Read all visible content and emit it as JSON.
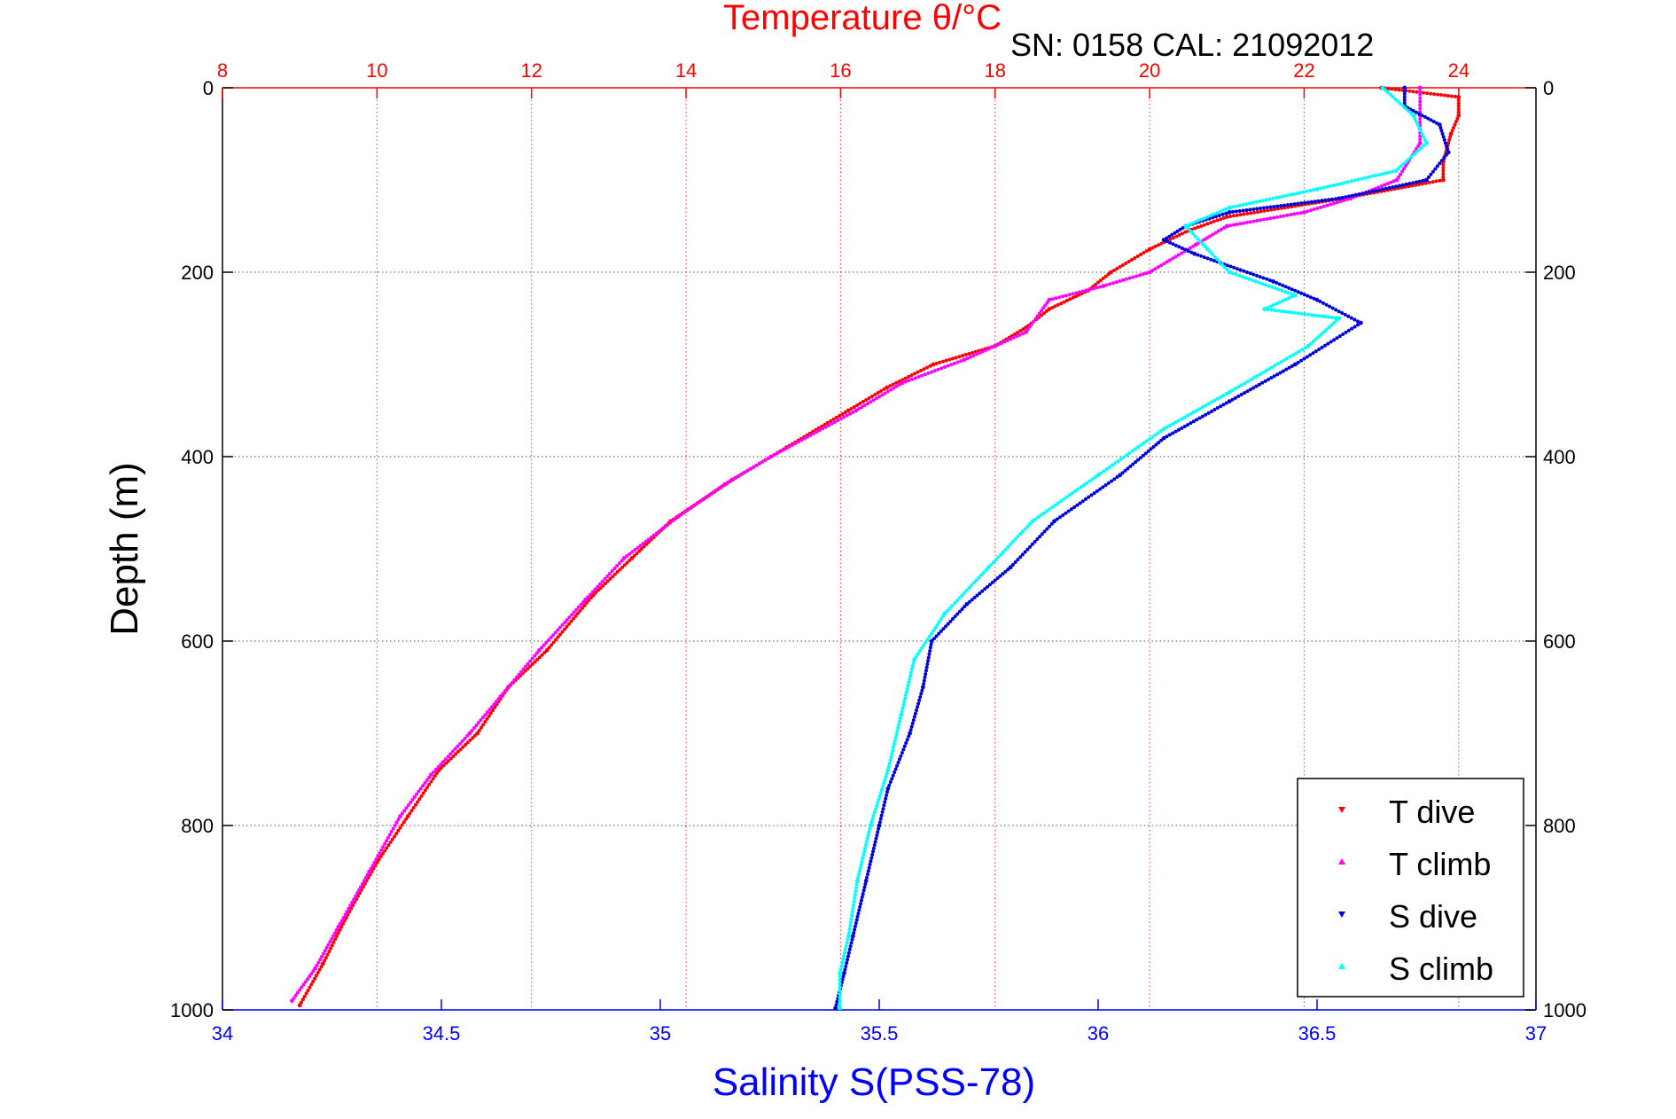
{
  "header": {
    "temperature_title": "Temperature θ/°C",
    "serial_label": "SN: 0158  CAL: 21092012"
  },
  "chart_data": {
    "type": "scatter",
    "ylabel": "Depth (m)",
    "xlabel_bottom": "Salinity S(PSS-78)",
    "xlabel_top": "Temperature θ/°C",
    "y_range": [
      0,
      1000
    ],
    "y_reversed": true,
    "y_ticks": [
      "0",
      "200",
      "400",
      "600",
      "800",
      "1000"
    ],
    "x_bottom_range": [
      34,
      37
    ],
    "x_bottom_ticks": [
      "34",
      "34.5",
      "35",
      "35.5",
      "36",
      "36.5",
      "37"
    ],
    "x_top_range": [
      8,
      25
    ],
    "x_top_ticks": [
      "8",
      "10",
      "12",
      "14",
      "16",
      "18",
      "20",
      "22",
      "24"
    ],
    "grid": true,
    "legend_position": "bottom-right",
    "colors": {
      "temperature_axis": "#ff0000",
      "salinity_axis": "#0000ff",
      "t_dive": "#ff0000",
      "t_climb": "#ff00ff",
      "s_dive": "#0000dd",
      "s_climb": "#00ffff"
    },
    "series": [
      {
        "name": "T dive",
        "axis": "top",
        "color": "#ff0000",
        "points": [
          [
            23.0,
            0
          ],
          [
            24.0,
            10
          ],
          [
            24.0,
            30
          ],
          [
            23.9,
            50
          ],
          [
            23.8,
            80
          ],
          [
            23.8,
            100
          ],
          [
            22.5,
            120
          ],
          [
            21.0,
            140
          ],
          [
            20.5,
            155
          ],
          [
            20.0,
            175
          ],
          [
            19.5,
            200
          ],
          [
            19.2,
            220
          ],
          [
            18.7,
            240
          ],
          [
            18.4,
            260
          ],
          [
            18.0,
            280
          ],
          [
            17.2,
            300
          ],
          [
            16.6,
            325
          ],
          [
            16.1,
            350
          ],
          [
            15.3,
            390
          ],
          [
            14.6,
            425
          ],
          [
            13.8,
            470
          ],
          [
            13.3,
            510
          ],
          [
            12.8,
            550
          ],
          [
            12.2,
            610
          ],
          [
            11.7,
            650
          ],
          [
            11.3,
            700
          ],
          [
            10.8,
            740
          ],
          [
            10.4,
            790
          ],
          [
            10.0,
            840
          ],
          [
            9.6,
            900
          ],
          [
            9.3,
            950
          ],
          [
            9.0,
            995
          ]
        ]
      },
      {
        "name": "T climb",
        "axis": "top",
        "color": "#ff00ff",
        "points": [
          [
            23.5,
            0
          ],
          [
            23.5,
            30
          ],
          [
            23.5,
            60
          ],
          [
            23.2,
            100
          ],
          [
            22.6,
            120
          ],
          [
            22.0,
            135
          ],
          [
            21.0,
            150
          ],
          [
            20.6,
            170
          ],
          [
            20.0,
            200
          ],
          [
            19.4,
            215
          ],
          [
            18.7,
            230
          ],
          [
            18.4,
            265
          ],
          [
            17.6,
            295
          ],
          [
            16.8,
            320
          ],
          [
            16.2,
            350
          ],
          [
            15.1,
            400
          ],
          [
            14.5,
            430
          ],
          [
            13.9,
            465
          ],
          [
            13.2,
            510
          ],
          [
            12.7,
            555
          ],
          [
            12.1,
            610
          ],
          [
            11.6,
            660
          ],
          [
            11.2,
            700
          ],
          [
            10.7,
            745
          ],
          [
            10.3,
            790
          ],
          [
            9.9,
            850
          ],
          [
            9.5,
            910
          ],
          [
            9.2,
            955
          ],
          [
            8.9,
            990
          ]
        ]
      },
      {
        "name": "S dive",
        "axis": "bottom",
        "color": "#0000dd",
        "points": [
          [
            36.7,
            0
          ],
          [
            36.7,
            20
          ],
          [
            36.78,
            40
          ],
          [
            36.8,
            70
          ],
          [
            36.75,
            100
          ],
          [
            36.55,
            120
          ],
          [
            36.3,
            135
          ],
          [
            36.2,
            150
          ],
          [
            36.15,
            165
          ],
          [
            36.22,
            180
          ],
          [
            36.4,
            210
          ],
          [
            36.5,
            230
          ],
          [
            36.6,
            255
          ],
          [
            36.45,
            300
          ],
          [
            36.3,
            340
          ],
          [
            36.15,
            380
          ],
          [
            36.05,
            420
          ],
          [
            35.9,
            470
          ],
          [
            35.8,
            520
          ],
          [
            35.7,
            560
          ],
          [
            35.62,
            600
          ],
          [
            35.6,
            650
          ],
          [
            35.57,
            700
          ],
          [
            35.52,
            760
          ],
          [
            35.5,
            800
          ],
          [
            35.47,
            860
          ],
          [
            35.44,
            920
          ],
          [
            35.42,
            960
          ],
          [
            35.4,
            998
          ]
        ]
      },
      {
        "name": "S climb",
        "axis": "bottom",
        "color": "#00ffff",
        "points": [
          [
            36.65,
            0
          ],
          [
            36.72,
            30
          ],
          [
            36.75,
            60
          ],
          [
            36.68,
            90
          ],
          [
            36.5,
            110
          ],
          [
            36.3,
            130
          ],
          [
            36.2,
            150
          ],
          [
            36.25,
            175
          ],
          [
            36.3,
            200
          ],
          [
            36.45,
            225
          ],
          [
            36.38,
            240
          ],
          [
            36.55,
            250
          ],
          [
            36.48,
            280
          ],
          [
            36.3,
            330
          ],
          [
            36.15,
            370
          ],
          [
            36.0,
            420
          ],
          [
            35.85,
            470
          ],
          [
            35.75,
            520
          ],
          [
            35.65,
            570
          ],
          [
            35.58,
            620
          ],
          [
            35.55,
            680
          ],
          [
            35.52,
            740
          ],
          [
            35.48,
            800
          ],
          [
            35.45,
            860
          ],
          [
            35.43,
            920
          ],
          [
            35.41,
            960
          ],
          [
            35.41,
            998
          ]
        ]
      }
    ],
    "legend": [
      {
        "label": "T dive",
        "color": "#ff0000"
      },
      {
        "label": "T climb",
        "color": "#ff00ff"
      },
      {
        "label": "S dive",
        "color": "#0000dd"
      },
      {
        "label": "S climb",
        "color": "#00ffff"
      }
    ]
  }
}
